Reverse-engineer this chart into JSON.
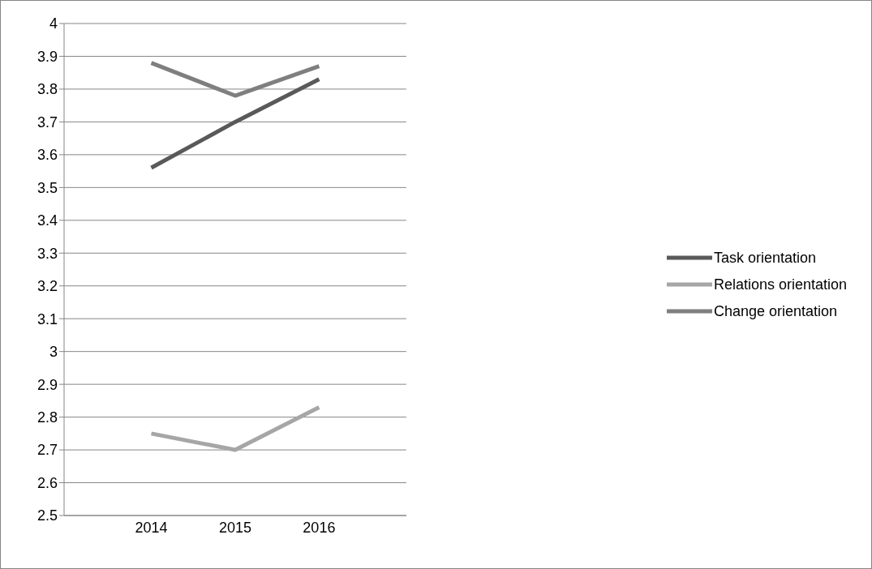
{
  "chart_data": {
    "type": "line",
    "categories": [
      "2014",
      "2015",
      "2016"
    ],
    "series": [
      {
        "name": "Task orientation",
        "color": "#595959",
        "values": [
          3.56,
          3.7,
          3.83
        ]
      },
      {
        "name": "Relations orientation",
        "color": "#a6a6a6",
        "values": [
          2.75,
          2.7,
          2.83
        ]
      },
      {
        "name": "Change orientation",
        "color": "#7f7f7f",
        "values": [
          3.88,
          3.78,
          3.87
        ]
      }
    ],
    "ylim": [
      2.5,
      4
    ],
    "yticks": [
      2.5,
      2.6,
      2.7,
      2.8,
      2.9,
      3,
      3.1,
      3.2,
      3.3,
      3.4,
      3.5,
      3.6,
      3.7,
      3.8,
      3.9,
      4
    ],
    "grid": "y",
    "legend": "right",
    "marker": "none",
    "line_style": "solid"
  }
}
